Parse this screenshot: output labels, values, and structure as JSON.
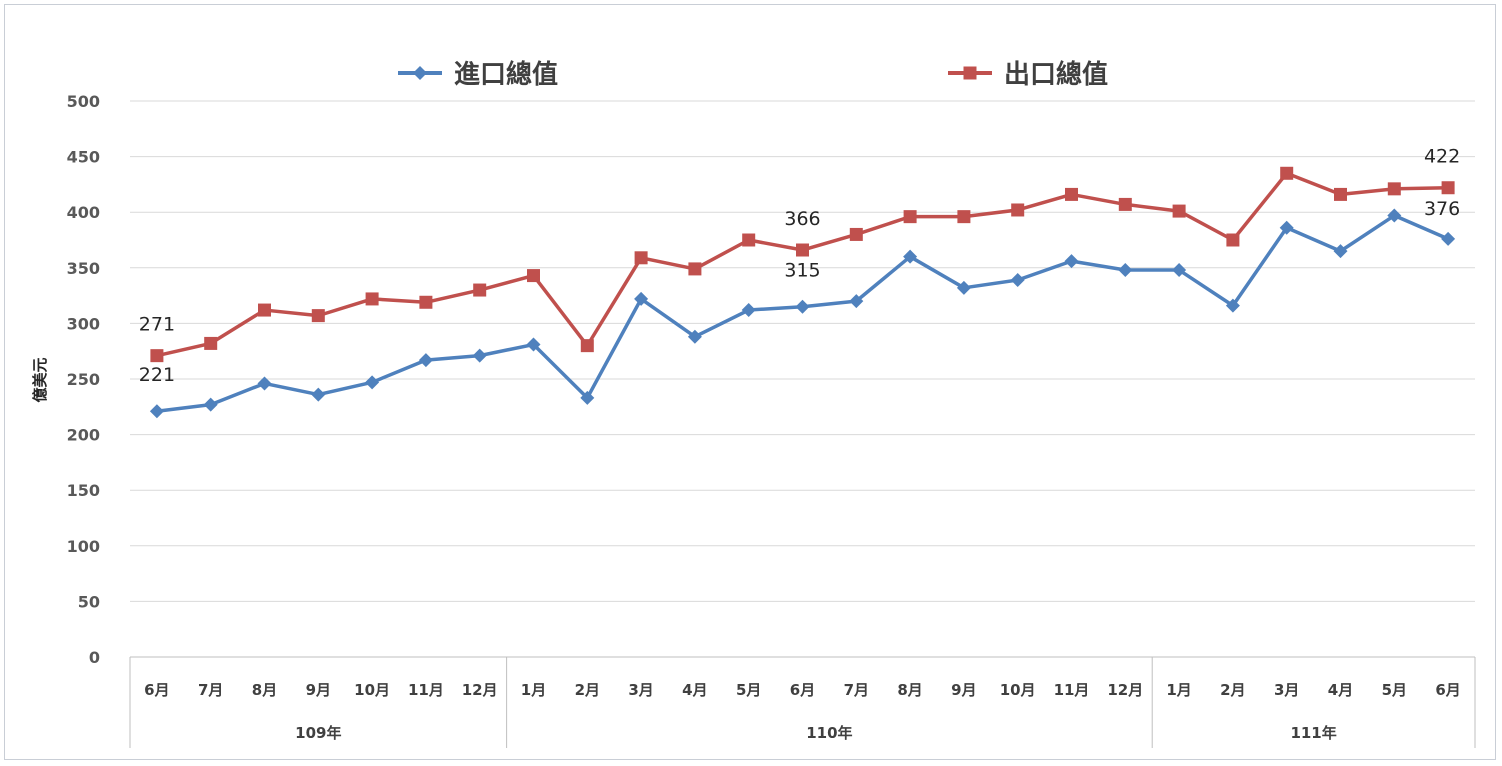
{
  "chart_data": {
    "type": "line",
    "ylabel": "億美元",
    "ylim": [
      0,
      500
    ],
    "yticks": [
      0,
      50,
      100,
      150,
      200,
      250,
      300,
      350,
      400,
      450,
      500
    ],
    "grid": true,
    "legend_position": "top",
    "categories": [
      "6月",
      "7月",
      "8月",
      "9月",
      "10月",
      "11月",
      "12月",
      "1月",
      "2月",
      "3月",
      "4月",
      "5月",
      "6月",
      "7月",
      "8月",
      "9月",
      "10月",
      "11月",
      "12月",
      "1月",
      "2月",
      "3月",
      "4月",
      "5月",
      "6月"
    ],
    "year_groups": [
      {
        "label": "109年",
        "start": 0,
        "count": 7
      },
      {
        "label": "110年",
        "start": 7,
        "count": 12
      },
      {
        "label": "111年",
        "start": 19,
        "count": 6
      }
    ],
    "series": [
      {
        "name": "進口總值",
        "color": "#4f81bd",
        "marker": "diamond",
        "values": [
          221,
          227,
          246,
          236,
          247,
          267,
          271,
          281,
          233,
          322,
          288,
          312,
          315,
          320,
          360,
          332,
          339,
          356,
          348,
          348,
          316,
          386,
          365,
          397,
          376
        ],
        "labels": [
          {
            "index": 0,
            "text": "221"
          },
          {
            "index": 12,
            "text": "315"
          },
          {
            "index": 24,
            "text": "376"
          }
        ]
      },
      {
        "name": "出口總值",
        "color": "#c0504d",
        "marker": "square",
        "values": [
          271,
          282,
          312,
          307,
          322,
          319,
          330,
          343,
          280,
          359,
          349,
          375,
          366,
          380,
          396,
          396,
          402,
          416,
          407,
          401,
          375,
          435,
          416,
          421,
          422
        ],
        "labels": [
          {
            "index": 0,
            "text": "271"
          },
          {
            "index": 12,
            "text": "366"
          },
          {
            "index": 24,
            "text": "422"
          }
        ]
      }
    ]
  }
}
